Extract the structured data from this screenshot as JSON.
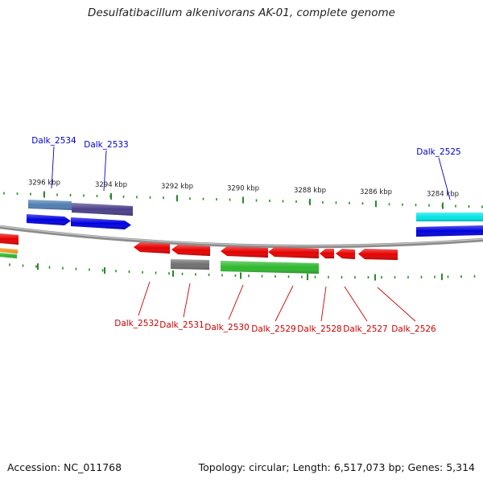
{
  "title": "Desulfatibacillum alkenivorans AK-01, complete genome",
  "footer": {
    "accession": "Accession: NC_011768",
    "summary": "Topology: circular; Length: 6,517,073 bp; Genes: 5,314"
  },
  "colors": {
    "backbone": "#8c8c8c",
    "tick": "#2a8a2a",
    "upper_label": "#0000cc",
    "lower_label": "#cc0000",
    "red_gene": "#e60000",
    "blue_gene": "#0000e0",
    "steel_gene": "#4f7fb3",
    "slate_gene": "#4a3f8a",
    "cyan_gene": "#00e6e6",
    "gray_gene": "#707070",
    "green_gene": "#2db82d",
    "orange_gene": "#f39a1c"
  },
  "scale_labels": [
    "3296 kbp",
    "3294 kbp",
    "3292 kbp",
    "3290 kbp",
    "3288 kbp",
    "3286 kbp",
    "3284 kbp"
  ],
  "gene_labels_top": [
    "Dalk_2534",
    "Dalk_2533",
    "Dalk_2525"
  ],
  "gene_labels_bottom": [
    "Dalk_2532",
    "Dalk_2531",
    "Dalk_2530",
    "Dalk_2529",
    "Dalk_2528",
    "Dalk_2527",
    "Dalk_2526"
  ]
}
